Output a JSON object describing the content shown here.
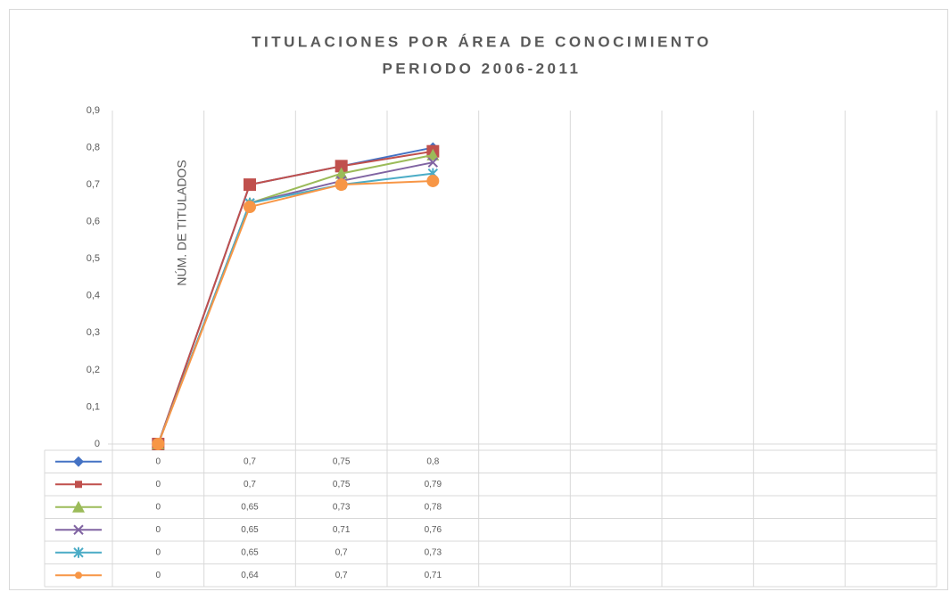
{
  "chart_data": {
    "type": "line",
    "title_lines": [
      "TITULACIONES POR ÁREA DE CONOCIMIENTO",
      "PERIODO 2006-2011"
    ],
    "y_label": "NÚM. DE TITULADOS",
    "categories": [
      null,
      null,
      null,
      null,
      null,
      null,
      null,
      null,
      null
    ],
    "series": [
      {
        "color": "#4472c4",
        "marker": "diamond",
        "values": [
          0,
          0.7,
          0.75,
          0.8,
          null,
          null,
          null,
          null,
          null
        ],
        "value_labels": [
          "0",
          "0,7",
          "0,75",
          "0,8",
          null,
          null,
          null,
          null,
          null
        ]
      },
      {
        "color": "#c0504d",
        "marker": "square",
        "values": [
          0,
          0.7,
          0.75,
          0.79,
          null,
          null,
          null,
          null,
          null
        ],
        "value_labels": [
          "0",
          "0,7",
          "0,75",
          "0,79",
          null,
          null,
          null,
          null,
          null
        ]
      },
      {
        "color": "#9bbb59",
        "marker": "triangle",
        "values": [
          0,
          0.65,
          0.73,
          0.78,
          null,
          null,
          null,
          null,
          null
        ],
        "value_labels": [
          "0",
          "0,65",
          "0,73",
          "0,78",
          null,
          null,
          null,
          null,
          null
        ]
      },
      {
        "color": "#8064a2",
        "marker": "x",
        "values": [
          0,
          0.65,
          0.71,
          0.76,
          null,
          null,
          null,
          null,
          null
        ],
        "value_labels": [
          "0",
          "0,65",
          "0,71",
          "0,76",
          null,
          null,
          null,
          null,
          null
        ]
      },
      {
        "color": "#4bacc6",
        "marker": "star",
        "values": [
          0,
          0.65,
          0.7,
          0.73,
          null,
          null,
          null,
          null,
          null
        ],
        "value_labels": [
          "0",
          "0,65",
          "0,7",
          "0,73",
          null,
          null,
          null,
          null,
          null
        ]
      },
      {
        "color": "#f79646",
        "marker": "circle",
        "values": [
          0,
          0.64,
          0.7,
          0.71,
          null,
          null,
          null,
          null,
          null
        ],
        "value_labels": [
          "0",
          "0,64",
          "0,7",
          "0,71",
          null,
          null,
          null,
          null,
          null
        ]
      }
    ],
    "ylim": [
      0,
      0.9
    ],
    "yticks": [
      0,
      {
        "value": 0.1,
        "label": "0,1"
      },
      {
        "value": 0.2,
        "label": "0,2"
      },
      {
        "value": 0.3,
        "label": "0,3"
      },
      {
        "value": 0.4,
        "label": "0,4"
      },
      {
        "value": 0.5,
        "label": "0,5"
      },
      {
        "value": 0.6,
        "label": "0,6"
      },
      {
        "value": 0.7,
        "label": "0,7"
      },
      {
        "value": 0.8,
        "label": "0,8"
      },
      {
        "value": 0.9,
        "label": "0,9"
      }
    ],
    "grid": true,
    "data_table": true
  }
}
